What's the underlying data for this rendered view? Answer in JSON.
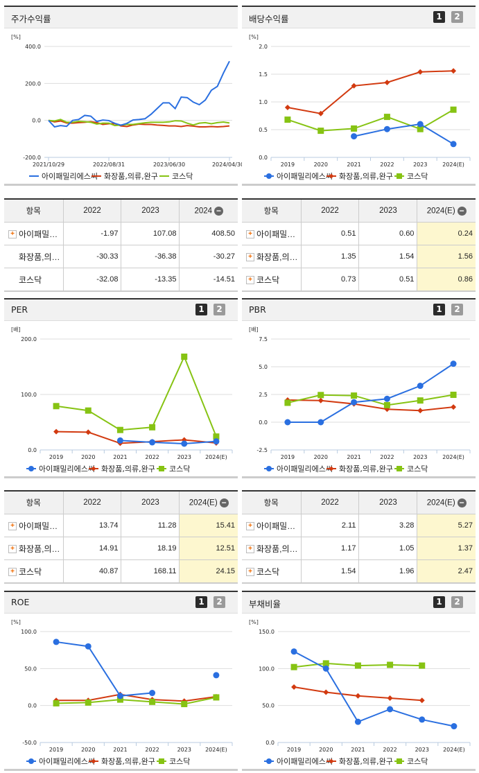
{
  "colors": {
    "blue": "#2a6fe0",
    "red": "#d23a10",
    "green": "#86c313"
  },
  "legend": [
    "아이패밀리에스씨",
    "화장품,의류,완구",
    "코스닥"
  ],
  "pager": [
    "1",
    "2"
  ],
  "charts": [
    {
      "title": "주가수익률",
      "unit": "[%]",
      "type": "line",
      "ylim": [
        -200,
        400
      ],
      "yticks": [
        "400.0",
        "200.0",
        "0.0",
        "-200.0"
      ],
      "ytickvals": [
        400,
        200,
        0,
        -200
      ],
      "x": [
        "2021/10",
        "2021/11",
        "2021/12",
        "2022/01",
        "2022/02",
        "2022/03",
        "2022/04",
        "2022/05",
        "2022/06",
        "2022/07",
        "2022/08",
        "2022/09",
        "2022/10",
        "2022/11",
        "2022/12",
        "2023/01",
        "2023/02",
        "2023/03",
        "2023/04",
        "2023/05",
        "2023/06",
        "2023/07",
        "2023/08",
        "2023/09",
        "2023/10",
        "2023/11",
        "2023/12",
        "2024/01",
        "2024/02",
        "2024/03",
        "2024/04"
      ],
      "xticklabels": [
        "2021/10/29",
        "2022/08/31",
        "2023/06/30",
        "2024/04/30"
      ],
      "xtickidx": [
        0,
        10,
        20,
        30
      ],
      "series": [
        {
          "name": "아이패밀리에스씨",
          "values": [
            0,
            -35,
            -28,
            -32,
            0,
            5,
            27,
            23,
            -6,
            2,
            -1,
            -16,
            -26,
            -16,
            2,
            5,
            9,
            33,
            64,
            95,
            95,
            64,
            126,
            123,
            99,
            85,
            110,
            163,
            184,
            256,
            320
          ]
        },
        {
          "name": "화장품,의류,완구",
          "values": [
            0,
            -8,
            -3,
            -14,
            -15,
            -12,
            -10,
            -7,
            -12,
            -22,
            -18,
            -18,
            -30,
            -33,
            -25,
            -20,
            -22,
            -22,
            -25,
            -27,
            -30,
            -30,
            -33,
            -28,
            -31,
            -35,
            -35,
            -33,
            -35,
            -33,
            -30
          ]
        },
        {
          "name": "코스닥",
          "values": [
            0,
            -3,
            5,
            -10,
            -10,
            -5,
            -7,
            -10,
            -20,
            -15,
            -15,
            -28,
            -25,
            -22,
            -22,
            -17,
            -13,
            -10,
            -10,
            -10,
            -8,
            -2,
            -3,
            -15,
            -25,
            -15,
            -12,
            -18,
            -12,
            -9,
            -14
          ]
        }
      ]
    },
    {
      "title": "배당수익률",
      "unit": "[%]",
      "type": "line",
      "ylim": [
        0,
        2
      ],
      "yticks": [
        "2.0",
        "1.5",
        "1.0",
        "0.5",
        "0.0"
      ],
      "ytickvals": [
        2,
        1.5,
        1,
        0.5,
        0
      ],
      "categories": [
        "2019",
        "2020",
        "2021",
        "2022",
        "2023",
        "2024(E)"
      ],
      "series": [
        {
          "name": "아이패밀리에스씨",
          "values": [
            null,
            null,
            0.38,
            0.51,
            0.6,
            0.24
          ]
        },
        {
          "name": "화장품,의류,완구",
          "values": [
            0.9,
            0.79,
            1.29,
            1.35,
            1.54,
            1.56
          ]
        },
        {
          "name": "코스닥",
          "values": [
            0.68,
            0.48,
            0.52,
            0.73,
            0.51,
            0.86
          ]
        }
      ]
    },
    {
      "title": "PER",
      "unit": "[배]",
      "type": "line",
      "ylim": [
        0,
        200
      ],
      "yticks": [
        "200.0",
        "100.0",
        "0.0"
      ],
      "ytickvals": [
        200,
        100,
        0
      ],
      "categories": [
        "2019",
        "2020",
        "2021",
        "2022",
        "2023",
        "2024(E)"
      ],
      "series": [
        {
          "name": "아이패밀리에스씨",
          "values": [
            null,
            null,
            17,
            13.74,
            11.28,
            15.41
          ]
        },
        {
          "name": "화장품,의류,완구",
          "values": [
            33,
            32,
            12,
            14.91,
            18.19,
            12.51
          ]
        },
        {
          "name": "코스닥",
          "values": [
            79,
            71,
            36,
            40.87,
            168.11,
            24.15
          ]
        }
      ]
    },
    {
      "title": "PBR",
      "unit": "[배]",
      "type": "line",
      "ylim": [
        -2.5,
        7.5
      ],
      "yticks": [
        "7.5",
        "5.0",
        "2.5",
        "0.0",
        "-2.5"
      ],
      "ytickvals": [
        7.5,
        5,
        2.5,
        0,
        -2.5
      ],
      "categories": [
        "2019",
        "2020",
        "2021",
        "2022",
        "2023",
        "2024(E)"
      ],
      "series": [
        {
          "name": "아이패밀리에스씨",
          "values": [
            0,
            0,
            1.8,
            2.11,
            3.28,
            5.27
          ]
        },
        {
          "name": "화장품,의류,완구",
          "values": [
            2.0,
            1.95,
            1.65,
            1.17,
            1.05,
            1.37
          ]
        },
        {
          "name": "코스닥",
          "values": [
            1.75,
            2.45,
            2.4,
            1.54,
            1.96,
            2.47
          ]
        }
      ]
    },
    {
      "title": "ROE",
      "unit": "[%]",
      "type": "line",
      "ylim": [
        -50,
        100
      ],
      "yticks": [
        "100.0",
        "50.0",
        "0.0",
        "-50.0"
      ],
      "ytickvals": [
        100,
        50,
        0,
        -50
      ],
      "categories": [
        "2019",
        "2020",
        "2021",
        "2022",
        "2023",
        "2024(E)"
      ],
      "series": [
        {
          "name": "아이패밀리에스씨",
          "values": [
            86,
            80,
            13,
            17,
            null,
            41
          ]
        },
        {
          "name": "화장품,의류,완구",
          "values": [
            7,
            7,
            15,
            8,
            6,
            12
          ]
        },
        {
          "name": "코스닥",
          "values": [
            3,
            4,
            8,
            5,
            2,
            11
          ]
        }
      ]
    },
    {
      "title": "부채비율",
      "unit": "[%]",
      "type": "line",
      "ylim": [
        0,
        150
      ],
      "yticks": [
        "150.0",
        "100.0",
        "50.0",
        "0.0"
      ],
      "ytickvals": [
        150,
        100,
        50,
        0
      ],
      "categories": [
        "2019",
        "2020",
        "2021",
        "2022",
        "2023",
        "2024(E)"
      ],
      "series": [
        {
          "name": "아이패밀리에스씨",
          "values": [
            123,
            100,
            28,
            45,
            31,
            22
          ]
        },
        {
          "name": "화장품,의류,완구",
          "values": [
            75,
            68,
            63,
            60,
            57,
            null
          ]
        },
        {
          "name": "코스닥",
          "values": [
            102,
            107,
            104,
            105,
            104,
            null
          ]
        }
      ]
    }
  ],
  "tables": [
    {
      "headers": [
        "항목",
        "2022",
        "2023",
        "2024"
      ],
      "rows": [
        [
          "아이패밀…",
          "-1.97",
          "107.08",
          "408.50"
        ],
        [
          "화장품,의…",
          "-30.33",
          "-36.38",
          "-30.27"
        ],
        [
          "코스닥",
          "-32.08",
          "-13.35",
          "-14.51"
        ]
      ]
    },
    {
      "headers": [
        "항목",
        "2022",
        "2023",
        "2024(E)"
      ],
      "rows": [
        [
          "아이패밀…",
          "0.51",
          "0.60",
          "0.24"
        ],
        [
          "화장품,의…",
          "1.35",
          "1.54",
          "1.56"
        ],
        [
          "코스닥",
          "0.73",
          "0.51",
          "0.86"
        ]
      ]
    },
    {
      "headers": [
        "항목",
        "2022",
        "2023",
        "2024(E)"
      ],
      "rows": [
        [
          "아이패밀…",
          "13.74",
          "11.28",
          "15.41"
        ],
        [
          "화장품,의…",
          "14.91",
          "18.19",
          "12.51"
        ],
        [
          "코스닥",
          "40.87",
          "168.11",
          "24.15"
        ]
      ]
    },
    {
      "headers": [
        "항목",
        "2022",
        "2023",
        "2024(E)"
      ],
      "rows": [
        [
          "아이패밀…",
          "2.11",
          "3.28",
          "5.27"
        ],
        [
          "화장품,의…",
          "1.17",
          "1.05",
          "1.37"
        ],
        [
          "코스닥",
          "1.54",
          "1.96",
          "2.47"
        ]
      ]
    }
  ]
}
